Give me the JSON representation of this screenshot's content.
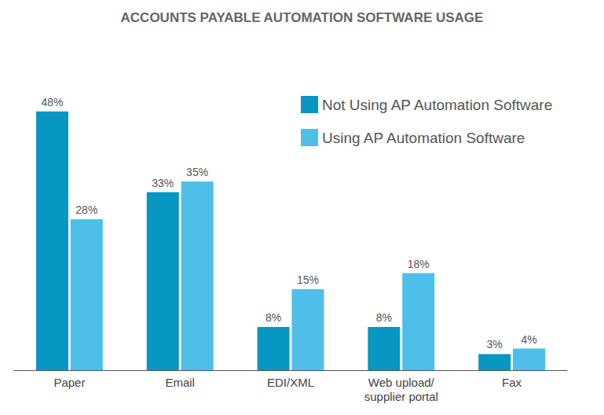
{
  "chart_data": {
    "type": "bar",
    "title": "ACCOUNTS PAYABLE AUTOMATION SOFTWARE USAGE",
    "categories": [
      "Paper",
      "Email",
      "EDI/XML",
      "Web upload/\nsupplier portal",
      "Fax"
    ],
    "series": [
      {
        "name": "Not Using AP Automation Software",
        "color": "#0896c2",
        "values": [
          48,
          33,
          8,
          8,
          3
        ],
        "value_labels": [
          "48%",
          "33%",
          "8%",
          "8%",
          "3%"
        ]
      },
      {
        "name": "Using AP Automation Software",
        "color": "#4dbfe9",
        "values": [
          28,
          35,
          15,
          18,
          4
        ],
        "value_labels": [
          "28%",
          "35%",
          "15%",
          "18%",
          "4%"
        ]
      }
    ],
    "ylim": [
      0,
      50
    ],
    "data_labels": true,
    "tick_labels": "x",
    "grid": false,
    "legend": "top-right"
  }
}
